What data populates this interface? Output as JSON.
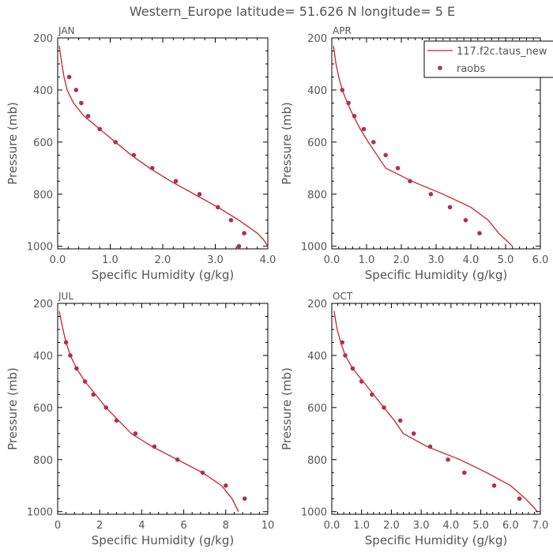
{
  "figure": {
    "title": "Western_Europe  latitude= 51.626 N longitude= 5 E"
  },
  "legend": {
    "model_label": "117.f2c.taus_new",
    "obs_label": "raobs"
  },
  "colors": {
    "model_line": "#cc2222",
    "obs_marker": "#b03050",
    "axis": "#000000",
    "text": "#555555"
  },
  "chart_data": [
    {
      "type": "line",
      "panel": "JAN",
      "title": "JAN",
      "xlabel": "Specific Humidity (g/kg)",
      "ylabel": "Pressure (mb)",
      "xlim": [
        0,
        4
      ],
      "ylim": [
        1010,
        200
      ],
      "y_inverted": true,
      "xticks": [
        "0.0",
        "1.0",
        "2.0",
        "3.0",
        "4.0"
      ],
      "yticks": [
        "200",
        "400",
        "600",
        "800",
        "1000"
      ],
      "series": [
        {
          "name": "117.f2c.taus_new",
          "style": "line",
          "points": [
            [
              0.03,
              230
            ],
            [
              0.05,
              260
            ],
            [
              0.08,
              300
            ],
            [
              0.12,
              350
            ],
            [
              0.18,
              400
            ],
            [
              0.3,
              450
            ],
            [
              0.5,
              500
            ],
            [
              0.8,
              550
            ],
            [
              1.1,
              600
            ],
            [
              1.4,
              650
            ],
            [
              1.75,
              700
            ],
            [
              2.15,
              750
            ],
            [
              2.6,
              800
            ],
            [
              3.05,
              850
            ],
            [
              3.45,
              900
            ],
            [
              3.8,
              950
            ],
            [
              3.92,
              975
            ],
            [
              4.0,
              1000
            ]
          ]
        },
        {
          "name": "raobs",
          "style": "marker",
          "points": [
            [
              0.22,
              350
            ],
            [
              0.35,
              400
            ],
            [
              0.45,
              450
            ],
            [
              0.58,
              500
            ],
            [
              0.8,
              550
            ],
            [
              1.1,
              600
            ],
            [
              1.45,
              650
            ],
            [
              1.8,
              700
            ],
            [
              2.25,
              750
            ],
            [
              2.7,
              800
            ],
            [
              3.05,
              850
            ],
            [
              3.3,
              900
            ],
            [
              3.55,
              950
            ],
            [
              3.45,
              1000
            ]
          ]
        }
      ]
    },
    {
      "type": "line",
      "panel": "APR",
      "title": "APR",
      "xlabel": "Specific Humidity (g/kg)",
      "ylabel": "Pressure (mb)",
      "xlim": [
        0,
        6
      ],
      "ylim": [
        1010,
        200
      ],
      "y_inverted": true,
      "xticks": [
        "0.0",
        "1.0",
        "2.0",
        "3.0",
        "4.0",
        "5.0",
        "6.0"
      ],
      "yticks": [
        "200",
        "400",
        "600",
        "800",
        "1000"
      ],
      "series": [
        {
          "name": "117.f2c.taus_new",
          "style": "line",
          "points": [
            [
              0.05,
              230
            ],
            [
              0.08,
              260
            ],
            [
              0.12,
              300
            ],
            [
              0.2,
              350
            ],
            [
              0.3,
              400
            ],
            [
              0.45,
              450
            ],
            [
              0.62,
              500
            ],
            [
              0.82,
              550
            ],
            [
              1.05,
              600
            ],
            [
              1.3,
              650
            ],
            [
              1.55,
              700
            ],
            [
              2.3,
              750
            ],
            [
              3.2,
              800
            ],
            [
              4.0,
              850
            ],
            [
              4.5,
              900
            ],
            [
              4.8,
              950
            ],
            [
              5.2,
              1000
            ]
          ]
        },
        {
          "name": "raobs",
          "style": "marker",
          "points": [
            [
              0.3,
              400
            ],
            [
              0.48,
              450
            ],
            [
              0.65,
              500
            ],
            [
              0.92,
              550
            ],
            [
              1.2,
              600
            ],
            [
              1.55,
              650
            ],
            [
              1.9,
              700
            ],
            [
              2.25,
              750
            ],
            [
              2.85,
              800
            ],
            [
              3.4,
              850
            ],
            [
              3.85,
              900
            ],
            [
              4.25,
              950
            ]
          ]
        }
      ]
    },
    {
      "type": "line",
      "panel": "JUL",
      "title": "JUL",
      "xlabel": "Specific Humidity (g/kg)",
      "ylabel": "Pressure (mb)",
      "xlim": [
        0,
        10
      ],
      "ylim": [
        1010,
        200
      ],
      "y_inverted": true,
      "xticks": [
        "0",
        "2",
        "4",
        "6",
        "8",
        "10"
      ],
      "yticks": [
        "200",
        "400",
        "600",
        "800",
        "1000"
      ],
      "series": [
        {
          "name": "117.f2c.taus_new",
          "style": "line",
          "points": [
            [
              0.08,
              230
            ],
            [
              0.15,
              260
            ],
            [
              0.25,
              300
            ],
            [
              0.4,
              350
            ],
            [
              0.6,
              400
            ],
            [
              0.9,
              450
            ],
            [
              1.3,
              500
            ],
            [
              1.8,
              550
            ],
            [
              2.3,
              600
            ],
            [
              2.9,
              650
            ],
            [
              3.5,
              700
            ],
            [
              4.5,
              750
            ],
            [
              5.7,
              800
            ],
            [
              6.9,
              850
            ],
            [
              7.8,
              900
            ],
            [
              8.3,
              950
            ],
            [
              8.6,
              1000
            ]
          ]
        },
        {
          "name": "raobs",
          "style": "marker",
          "points": [
            [
              0.4,
              350
            ],
            [
              0.6,
              400
            ],
            [
              0.9,
              450
            ],
            [
              1.3,
              500
            ],
            [
              1.7,
              550
            ],
            [
              2.3,
              600
            ],
            [
              2.8,
              650
            ],
            [
              3.7,
              700
            ],
            [
              4.6,
              750
            ],
            [
              5.7,
              800
            ],
            [
              6.9,
              850
            ],
            [
              8.0,
              900
            ],
            [
              8.9,
              950
            ]
          ]
        }
      ]
    },
    {
      "type": "line",
      "panel": "OCT",
      "title": "OCT",
      "xlabel": "Specific Humidity (g/kg)",
      "ylabel": "Pressure (mb)",
      "xlim": [
        0,
        7
      ],
      "ylim": [
        1010,
        200
      ],
      "y_inverted": true,
      "xticks": [
        "0.0",
        "1.0",
        "2.0",
        "3.0",
        "4.0",
        "5.0",
        "6.0",
        "7.0"
      ],
      "yticks": [
        "200",
        "400",
        "600",
        "800",
        "1000"
      ],
      "series": [
        {
          "name": "117.f2c.taus_new",
          "style": "line",
          "points": [
            [
              0.08,
              230
            ],
            [
              0.12,
              260
            ],
            [
              0.18,
              300
            ],
            [
              0.3,
              350
            ],
            [
              0.45,
              400
            ],
            [
              0.7,
              450
            ],
            [
              1.05,
              500
            ],
            [
              1.4,
              550
            ],
            [
              1.75,
              600
            ],
            [
              2.1,
              650
            ],
            [
              2.4,
              700
            ],
            [
              3.2,
              750
            ],
            [
              4.3,
              800
            ],
            [
              5.2,
              850
            ],
            [
              6.0,
              900
            ],
            [
              6.5,
              950
            ],
            [
              6.75,
              980
            ],
            [
              6.9,
              1000
            ]
          ]
        },
        {
          "name": "raobs",
          "style": "marker",
          "points": [
            [
              0.35,
              350
            ],
            [
              0.45,
              400
            ],
            [
              0.7,
              450
            ],
            [
              1.0,
              500
            ],
            [
              1.35,
              550
            ],
            [
              1.75,
              600
            ],
            [
              2.3,
              650
            ],
            [
              2.75,
              700
            ],
            [
              3.3,
              750
            ],
            [
              3.9,
              800
            ],
            [
              4.45,
              850
            ],
            [
              5.45,
              900
            ],
            [
              6.3,
              950
            ]
          ]
        }
      ]
    }
  ]
}
